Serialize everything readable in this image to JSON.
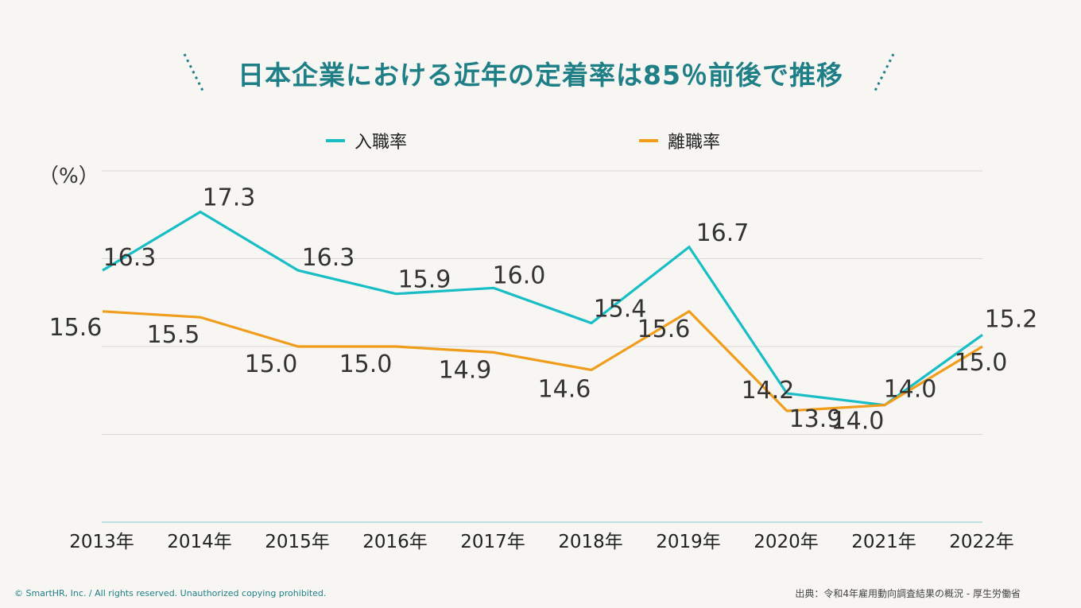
{
  "title": "日本企業における近年の定着率は85％前後で推移",
  "footer": {
    "copyright": "© SmartHR, Inc. / All rights reserved. Unauthorized copying prohibited.",
    "source": "出典：令和4年雇用動向調査結果の概況 - 厚生労働省"
  },
  "colors": {
    "title": "#1e7f86",
    "series1": "#19bdc6",
    "series2": "#f19d1c",
    "grid": "#d7d7d7",
    "text": "#333333"
  },
  "chart_data": {
    "type": "line",
    "title": "日本企業における近年の定着率は85％前後で推移",
    "ylabel": "（%）",
    "xlabel": "",
    "ylim": [
      12.0,
      18.0
    ],
    "grid": true,
    "legend_position": "top-center",
    "categories": [
      "2013年",
      "2014年",
      "2015年",
      "2016年",
      "2017年",
      "2018年",
      "2019年",
      "2020年",
      "2021年",
      "2022年"
    ],
    "series": [
      {
        "name": "入職率",
        "color": "#19bdc6",
        "values": [
          16.3,
          17.3,
          16.3,
          15.9,
          16.0,
          15.4,
          16.7,
          14.2,
          14.0,
          15.2
        ]
      },
      {
        "name": "離職率",
        "color": "#f19d1c",
        "values": [
          15.6,
          15.5,
          15.0,
          15.0,
          14.9,
          14.6,
          15.6,
          13.9,
          14.0,
          15.0
        ]
      }
    ]
  }
}
